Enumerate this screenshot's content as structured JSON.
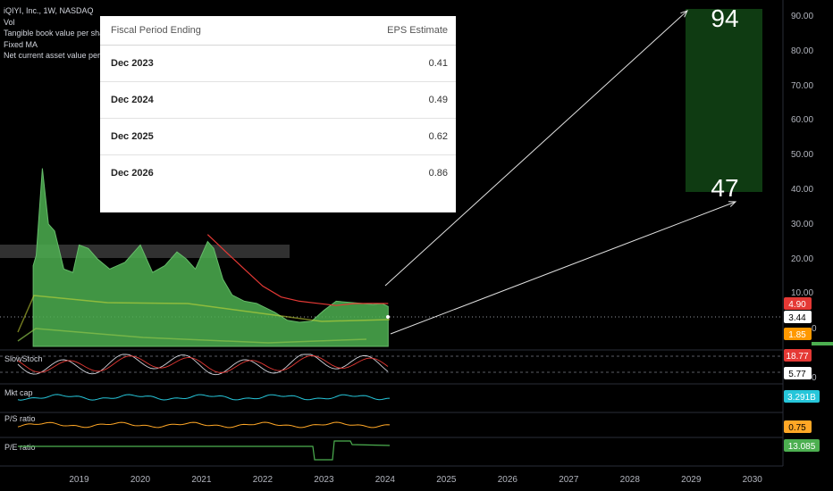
{
  "legend": {
    "title": "iQIYI, Inc., 1W, NASDAQ",
    "items": [
      "Vol",
      "Tangible book value per share , FQ",
      "Fixed MA",
      "Net current asset value per share"
    ]
  },
  "eps_table": {
    "header_period": "Fiscal Period Ending",
    "header_estimate": "EPS Estimate",
    "rows": [
      {
        "period": "Dec 2023",
        "value": "0.41"
      },
      {
        "period": "Dec 2024",
        "value": "0.49"
      },
      {
        "period": "Dec 2025",
        "value": "0.62"
      },
      {
        "period": "Dec 2026",
        "value": "0.86"
      }
    ]
  },
  "targets": {
    "high": "94",
    "low": "47",
    "box_color": "#0f3b12"
  },
  "colors": {
    "price_fill": "#4caf50",
    "ma": "#e53935",
    "mktcap": "#26c6da",
    "ps": "#ffa726",
    "pe": "#4caf50",
    "stoch_k": "#d1d4dc",
    "stoch_d": "#e53935",
    "grid_text": "#b2b5be"
  },
  "chart_data": {
    "type": "area",
    "price_axis": {
      "ticks": [
        "90.00",
        "80.00",
        "70.00",
        "60.00",
        "50.00",
        "40.00",
        "30.00",
        "20.00",
        "10.00"
      ],
      "scale": "log",
      "range": [
        0.5,
        100
      ]
    },
    "time_axis": [
      "2019",
      "2020",
      "2021",
      "2022",
      "2023",
      "2024",
      "2025",
      "2026",
      "2027",
      "2028",
      "2029",
      "2030"
    ],
    "price_series": {
      "name": "Price",
      "x": [
        2018.25,
        2018.3,
        2018.4,
        2018.5,
        2018.6,
        2018.75,
        2018.9,
        2019.0,
        2019.15,
        2019.3,
        2019.5,
        2019.75,
        2020.0,
        2020.2,
        2020.4,
        2020.6,
        2020.75,
        2020.9,
        2021.1,
        2021.2,
        2021.35,
        2021.5,
        2021.7,
        2021.9,
        2022.2,
        2022.4,
        2022.6,
        2022.8,
        2023.0,
        2023.2,
        2023.4,
        2023.6,
        2023.8,
        2023.95,
        2024.05
      ],
      "y": [
        18.0,
        21.0,
        46.0,
        30.0,
        28.0,
        17.0,
        16.0,
        24.0,
        23.0,
        20.0,
        17.0,
        19.0,
        24.0,
        16.0,
        18.0,
        22.0,
        20.0,
        17.0,
        25.0,
        23.0,
        14.0,
        9.0,
        6.0,
        5.0,
        4.0,
        3.2,
        3.0,
        3.1,
        4.2,
        6.0,
        5.5,
        5.0,
        4.8,
        4.9,
        4.6
      ]
    },
    "ma_series": {
      "name": "Fixed MA",
      "x": [
        2021.1,
        2021.4,
        2021.7,
        2022.0,
        2022.3,
        2022.6,
        2022.9,
        2023.2,
        2023.5,
        2023.8,
        2024.05
      ],
      "y": [
        27,
        22,
        17,
        12,
        8,
        6.0,
        5.0,
        4.7,
        4.9,
        5.0,
        4.9
      ]
    },
    "annotations": [
      {
        "type": "arrow",
        "from": [
          2024.0,
          6.0
        ],
        "to": [
          2028.8,
          94
        ]
      },
      {
        "type": "arrow",
        "from": [
          2024.05,
          1.6
        ],
        "to": [
          2029.6,
          47
        ]
      }
    ],
    "price_labels": [
      {
        "label": "4.90",
        "color": "#e53935"
      },
      {
        "label": "3.44",
        "color": "#ffffff"
      },
      {
        "label": "1.85",
        "color": "#ff9800"
      }
    ],
    "panes": [
      {
        "name": "SlowStoch",
        "labels": [
          "18.77",
          "5.77"
        ],
        "label_colors": [
          "#e53935",
          "#ffffff"
        ]
      },
      {
        "name": "Mkt cap",
        "labels": [
          "3.291B"
        ],
        "label_colors": [
          "#26c6da"
        ]
      },
      {
        "name": "P/S ratio",
        "labels": [
          "0.75"
        ],
        "label_colors": [
          "#ffa726"
        ]
      },
      {
        "name": "P/E ratio",
        "labels": [
          "13.085"
        ],
        "label_colors": [
          "#4caf50"
        ]
      }
    ],
    "tick_fragments": [
      "0",
      "0"
    ]
  }
}
